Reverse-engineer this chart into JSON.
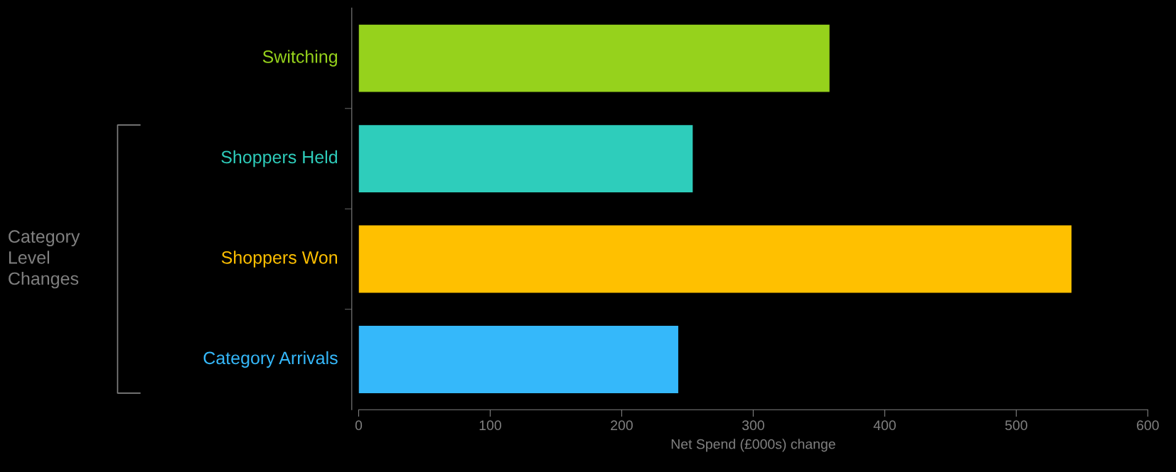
{
  "chart_data": {
    "type": "bar",
    "orientation": "horizontal",
    "xlabel": "Net Spend (£000s) change",
    "categories": [
      "Switching",
      "Shoppers Held",
      "Shoppers Won",
      "Category Arrivals"
    ],
    "values": [
      358,
      254,
      542,
      243
    ],
    "colors": [
      "#96d21c",
      "#2ecdbb",
      "#ffc000",
      "#35b8fa"
    ],
    "xlim": [
      0,
      600
    ],
    "xticks": [
      0,
      100,
      200,
      300,
      400,
      500,
      600
    ],
    "grid": false,
    "legend": false,
    "annotations": [
      "Category\nLevel\nChanges"
    ]
  }
}
